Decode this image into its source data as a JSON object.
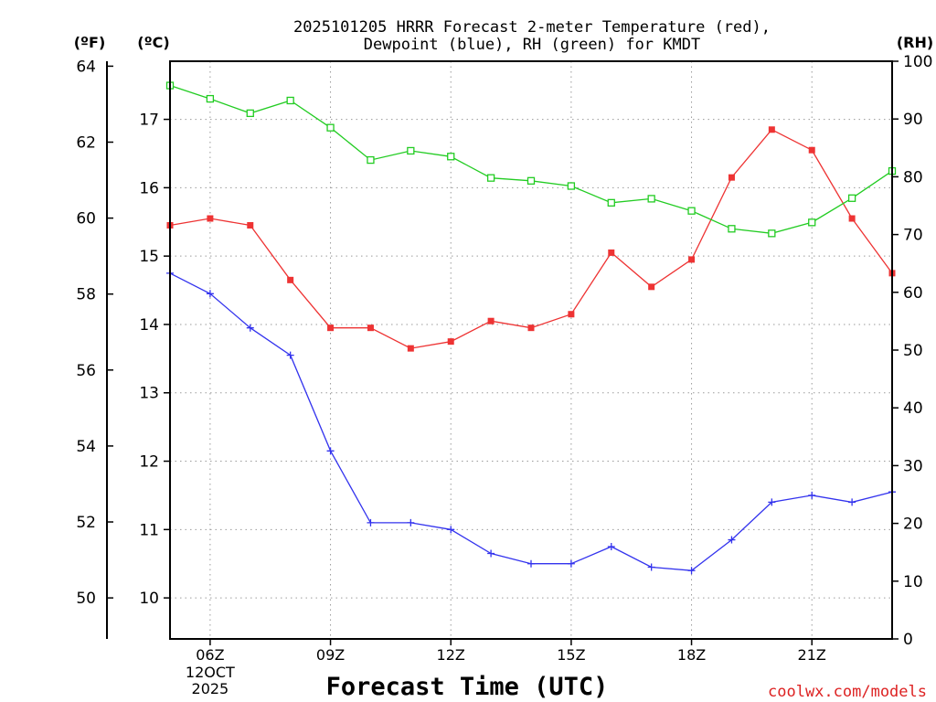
{
  "chart_data": {
    "type": "line",
    "title_lines": [
      "2025101205 HRRR Forecast 2-meter Temperature (red),",
      "Dewpoint (blue), RH (green) for KMDT"
    ],
    "xlabel": "Forecast Time (UTC)",
    "watermark": "coolwx.com/models",
    "x_hours": [
      5,
      6,
      7,
      8,
      9,
      10,
      11,
      12,
      13,
      14,
      15,
      16,
      17,
      18,
      19,
      20,
      21,
      22,
      23
    ],
    "x_ticks": [
      {
        "hour": 6,
        "label": "06Z",
        "sublabels": [
          "12OCT",
          "2025"
        ]
      },
      {
        "hour": 9,
        "label": "09Z",
        "sublabels": []
      },
      {
        "hour": 12,
        "label": "12Z",
        "sublabels": []
      },
      {
        "hour": 15,
        "label": "15Z",
        "sublabels": []
      },
      {
        "hour": 18,
        "label": "18Z",
        "sublabels": []
      },
      {
        "hour": 21,
        "label": "21Z",
        "sublabels": []
      }
    ],
    "xlim": [
      5,
      23
    ],
    "y_celsius": {
      "unit_label": "(ºC)",
      "ylim": [
        9.4,
        17.85
      ],
      "ticks": [
        10,
        11,
        12,
        13,
        14,
        15,
        16,
        17
      ]
    },
    "y_fahrenheit": {
      "unit_label": "(ºF)",
      "ticks": [
        50,
        52,
        54,
        56,
        58,
        60,
        62,
        64
      ]
    },
    "y_rh": {
      "unit_label": "(RH)",
      "ylim": [
        0,
        100
      ],
      "ticks": [
        0,
        10,
        20,
        30,
        40,
        50,
        60,
        70,
        80,
        90,
        100
      ]
    },
    "series": [
      {
        "name": "Temperature",
        "axis": "celsius",
        "color": "#ee3333",
        "marker": "filled-square",
        "values": [
          15.45,
          15.55,
          15.45,
          14.65,
          13.95,
          13.95,
          13.65,
          13.75,
          14.05,
          13.95,
          14.15,
          15.05,
          14.55,
          14.95,
          16.15,
          16.85,
          16.55,
          15.55,
          14.75
        ]
      },
      {
        "name": "Dewpoint",
        "axis": "celsius",
        "color": "#3333ee",
        "marker": "plus",
        "values": [
          14.75,
          14.45,
          13.95,
          13.55,
          12.15,
          11.1,
          11.1,
          11.0,
          10.65,
          10.5,
          10.5,
          10.75,
          10.45,
          10.4,
          10.85,
          11.4,
          11.5,
          11.4,
          11.55
        ]
      },
      {
        "name": "RH",
        "axis": "rh",
        "color": "#22cc22",
        "marker": "open-square",
        "values": [
          95.8,
          93.5,
          91,
          93.2,
          88.5,
          82.9,
          84.5,
          83.5,
          79.8,
          79.3,
          78.4,
          75.5,
          76.2,
          74.1,
          71,
          70.2,
          72.1,
          76.3,
          81
        ]
      }
    ]
  }
}
